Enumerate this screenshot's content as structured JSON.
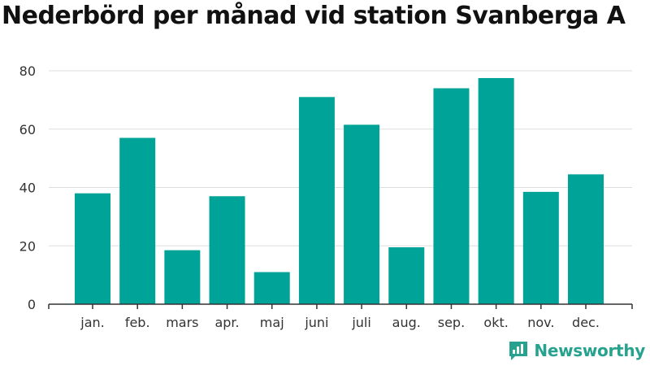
{
  "chart_data": {
    "type": "bar",
    "title": "Nederbörd per månad vid station Svanberga A",
    "categories": [
      "jan.",
      "feb.",
      "mars",
      "apr.",
      "maj",
      "juni",
      "juli",
      "aug.",
      "sep.",
      "okt.",
      "nov.",
      "dec."
    ],
    "values": [
      38,
      57,
      18.5,
      37,
      11,
      71,
      61.5,
      19.5,
      74,
      77.5,
      38.5,
      44.5
    ],
    "ylim": [
      0,
      80
    ],
    "yticks": [
      0,
      20,
      40,
      60,
      80
    ],
    "xlabel": "",
    "ylabel": "",
    "grid": true,
    "bar_color": "#00a398"
  },
  "brand": {
    "name": "Newsworthy",
    "icon": "bar-chart-icon",
    "color": "#27a28f"
  }
}
